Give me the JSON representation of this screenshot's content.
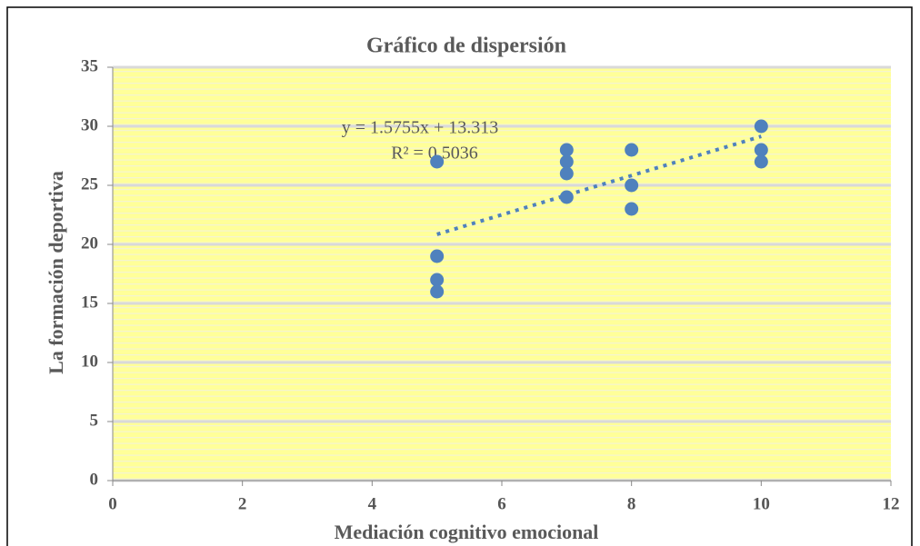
{
  "chart_data": {
    "type": "scatter",
    "title": "Gráfico de dispersión",
    "x_label": "Mediación cognitivo emocional",
    "y_label": "La formación deportiva",
    "series": [
      {
        "color": "#4f81bd",
        "x": [
          5,
          5,
          5,
          5,
          7,
          7,
          7,
          7,
          8,
          8,
          8,
          10,
          10,
          10
        ],
        "values": [
          27,
          19,
          17,
          16,
          28,
          27,
          26,
          24,
          28,
          25,
          23,
          30,
          28,
          27
        ]
      }
    ],
    "annotations": [
      "y = 1.5755x + 13.313",
      "R² = 0.5036"
    ],
    "trendline_color": "#4f81bd",
    "background_color": "#ffff99",
    "xlim": [
      0,
      12
    ],
    "xticks": [
      0,
      2,
      4,
      6,
      8,
      10,
      12
    ],
    "ylim": [
      0,
      35
    ],
    "yticks": [
      0,
      5,
      10,
      15,
      20,
      25,
      30,
      35
    ],
    "grid": true
  }
}
